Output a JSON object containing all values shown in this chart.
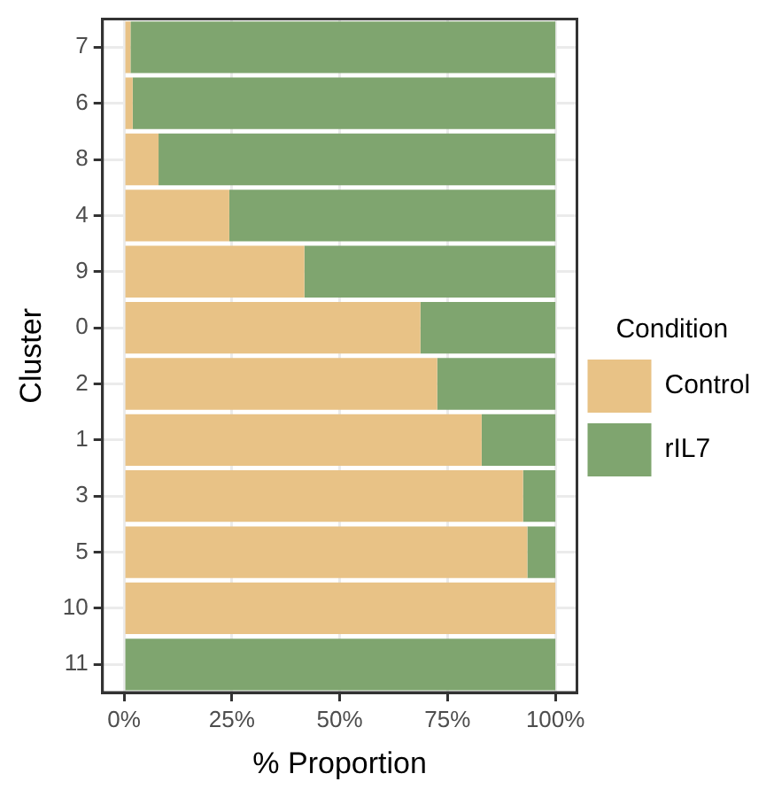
{
  "chart_data": {
    "type": "bar",
    "orientation": "horizontal",
    "stacked": true,
    "xlabel": "% Proportion",
    "ylabel": "Cluster",
    "legend_title": "Condition",
    "categories": [
      "7",
      "6",
      "8",
      "4",
      "9",
      "0",
      "2",
      "1",
      "3",
      "5",
      "10",
      "11"
    ],
    "series": [
      {
        "name": "Control",
        "color": "#e8c286",
        "values": [
          1.5,
          2,
          8,
          24.4,
          41.8,
          68.7,
          72.6,
          82.9,
          92.5,
          93.5,
          100,
          0
        ]
      },
      {
        "name": "rIL7",
        "color": "#7fa56f",
        "values": [
          98.5,
          98,
          92,
          75.6,
          58.2,
          31.3,
          27.4,
          17.1,
          7.5,
          6.5,
          0,
          100
        ]
      }
    ],
    "xlim": [
      -5,
      105
    ],
    "xticks": [
      {
        "value": 0,
        "label": "0%"
      },
      {
        "value": 25,
        "label": "25%"
      },
      {
        "value": 50,
        "label": "50%"
      },
      {
        "value": 75,
        "label": "75%"
      },
      {
        "value": 100,
        "label": "100%"
      }
    ],
    "grid": true,
    "legend": "right"
  }
}
